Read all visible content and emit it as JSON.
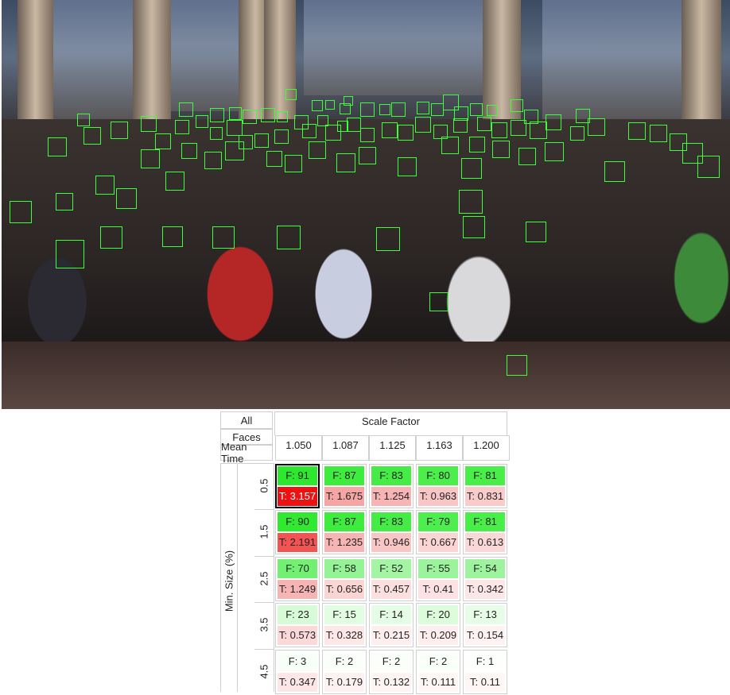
{
  "photo": {
    "alt": ""
  },
  "table": {
    "header_all": "All",
    "header_faces": "Faces",
    "header_mean_time": "Mean Time",
    "scale_title": "Scale Factor",
    "y_title": "Min. Size (%)",
    "scale_factors": [
      "1.050",
      "1.087",
      "1.125",
      "1.163",
      "1.200"
    ],
    "min_sizes": [
      "0.5",
      "1.5",
      "2.5",
      "3.5",
      "4.5"
    ],
    "rows": [
      {
        "cells": [
          {
            "F": "F: 91",
            "T": "T: 3.157",
            "fcolor": "#2ee82e",
            "tcolor": "#ee1111",
            "tcolor_text": "#ffffff"
          },
          {
            "F": "F: 87",
            "T": "T: 1.675",
            "fcolor": "#3dec3d",
            "tcolor": "#f6a5a5"
          },
          {
            "F": "F: 83",
            "T": "T: 1.254",
            "fcolor": "#45ec45",
            "tcolor": "#f7b4b4"
          },
          {
            "F": "F: 80",
            "T": "T: 0.963",
            "fcolor": "#4bee4b",
            "tcolor": "#f9c6c6"
          },
          {
            "F": "F: 81",
            "T": "T: 0.831",
            "fcolor": "#49ee49",
            "tcolor": "#f9cbcb"
          }
        ]
      },
      {
        "cells": [
          {
            "F": "F: 90",
            "T": "T: 2.191",
            "fcolor": "#31e931",
            "tcolor": "#f25454"
          },
          {
            "F": "F: 87",
            "T": "T: 1.235",
            "fcolor": "#3dec3d",
            "tcolor": "#f7b4b4"
          },
          {
            "F": "F: 83",
            "T": "T: 0.946",
            "fcolor": "#45ec45",
            "tcolor": "#f9c6c6"
          },
          {
            "F": "F: 79",
            "T": "T: 0.667",
            "fcolor": "#4dee4d",
            "tcolor": "#fbd4d4"
          },
          {
            "F": "F: 81",
            "T": "T: 0.613",
            "fcolor": "#49ee49",
            "tcolor": "#fbd8d8"
          }
        ]
      },
      {
        "cells": [
          {
            "F": "F: 70",
            "T": "T: 1.249",
            "fcolor": "#72f072",
            "tcolor": "#f7b4b4"
          },
          {
            "F": "F: 58",
            "T": "T: 0.656",
            "fcolor": "#94f394",
            "tcolor": "#fbd4d4"
          },
          {
            "F": "F: 52",
            "T": "T: 0.457",
            "fcolor": "#a3f5a3",
            "tcolor": "#fce0e0"
          },
          {
            "F": "F: 55",
            "T": "T: 0.41",
            "fcolor": "#9bf49b",
            "tcolor": "#fce2e2"
          },
          {
            "F": "F: 54",
            "T": "T: 0.342",
            "fcolor": "#9ef49e",
            "tcolor": "#fde6e6"
          }
        ]
      },
      {
        "cells": [
          {
            "F": "F: 23",
            "T": "T: 0.573",
            "fcolor": "#d6fbd6",
            "tcolor": "#fbd9d9"
          },
          {
            "F": "F: 15",
            "T": "T: 0.328",
            "fcolor": "#e3fde3",
            "tcolor": "#fde7e7"
          },
          {
            "F": "F: 14",
            "T": "T: 0.215",
            "fcolor": "#e5fde5",
            "tcolor": "#feeeee"
          },
          {
            "F": "F: 20",
            "T": "T: 0.209",
            "fcolor": "#dcfcdc",
            "tcolor": "#feeeee"
          },
          {
            "F": "F: 13",
            "T": "T: 0.154",
            "fcolor": "#e8fde8",
            "tcolor": "#fef2f2"
          }
        ]
      },
      {
        "cells": [
          {
            "F": "F: 3",
            "T": "T: 0.347",
            "fcolor": "#f8fff8",
            "tcolor": "#fde6e6"
          },
          {
            "F": "F: 2",
            "T": "T: 0.179",
            "fcolor": "#fafffa",
            "tcolor": "#fef1f1"
          },
          {
            "F": "F: 2",
            "T": "T: 0.132",
            "fcolor": "#fafffa",
            "tcolor": "#fff4f4"
          },
          {
            "F": "F: 2",
            "T": "T: 0.111",
            "fcolor": "#fafffa",
            "tcolor": "#fff6f6"
          },
          {
            "F": "F: 1",
            "T": "T: 0.11",
            "fcolor": "#fcfffc",
            "tcolor": "#fff6f6"
          }
        ]
      }
    ]
  },
  "colors": {
    "face_box": "#3cff3c",
    "border": "#cfcfcf",
    "selected_border": "#000000"
  }
}
